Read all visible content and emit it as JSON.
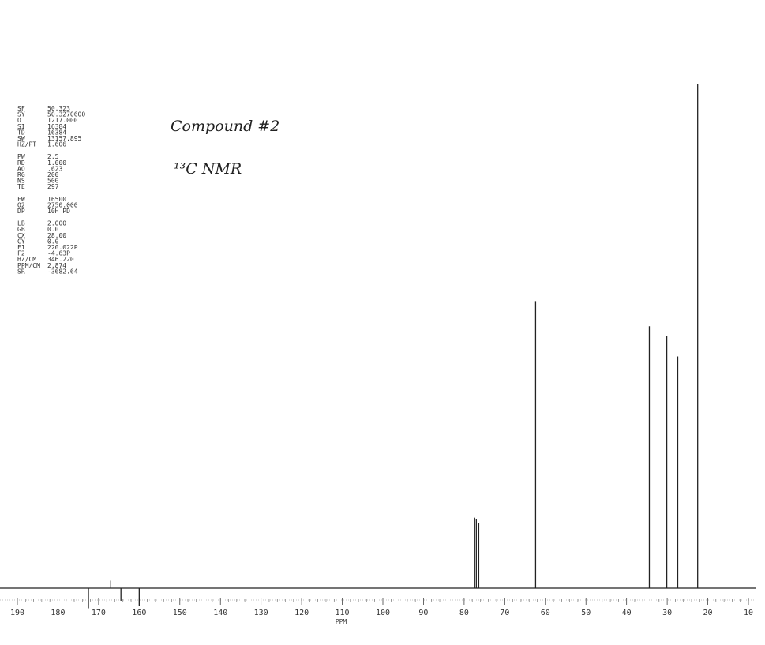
{
  "chart_data": {
    "type": "spectrum",
    "annotations": [
      "Compound #2",
      "¹³C NMR"
    ],
    "x_label": "PPM",
    "parameters": [
      [
        [
          "SF",
          "50.323"
        ],
        [
          "SY",
          "50.3270600"
        ],
        [
          "O",
          "1217.000"
        ],
        [
          "SI",
          "16384"
        ],
        [
          "TD",
          "16384"
        ],
        [
          "SW",
          "13157.895"
        ],
        [
          "HZ/PT",
          "1.606"
        ]
      ],
      [
        [
          "PW",
          "2.5"
        ],
        [
          "RD",
          "1.000"
        ],
        [
          "AQ",
          ".623"
        ],
        [
          "RG",
          "200"
        ],
        [
          "NS",
          "500"
        ],
        [
          "TE",
          "297"
        ]
      ],
      [
        [
          "FW",
          "16500"
        ],
        [
          "O2",
          "2750.000"
        ],
        [
          "DP",
          "10H PD"
        ]
      ],
      [
        [
          "LB",
          "2.000"
        ],
        [
          "GB",
          "0.0"
        ],
        [
          "CX",
          "28.00"
        ],
        [
          "CY",
          "0.0"
        ],
        [
          "F1",
          "220.022P"
        ],
        [
          "F2",
          "-4.63P"
        ],
        [
          "HZ/CM",
          "346.220"
        ],
        [
          "PPM/CM",
          "2.874"
        ],
        [
          "SR",
          "-3682.64"
        ]
      ]
    ],
    "peaks": {
      "x": [
        172.5,
        167.0,
        164.5,
        160.0,
        77.4,
        77.0,
        76.4,
        62.4,
        34.4,
        30.1,
        27.4,
        22.5
      ],
      "values": [
        -4,
        1.5,
        -2.5,
        -3.5,
        14,
        13.7,
        13,
        57,
        52,
        50,
        46,
        100
      ]
    },
    "color": "#222222",
    "xlim": [
      190,
      10
    ],
    "ylim": [
      0,
      100
    ],
    "xticks": [
      190,
      180,
      170,
      160,
      150,
      140,
      130,
      120,
      110,
      100,
      90,
      80,
      70,
      60,
      50,
      40,
      30,
      20,
      10
    ]
  }
}
